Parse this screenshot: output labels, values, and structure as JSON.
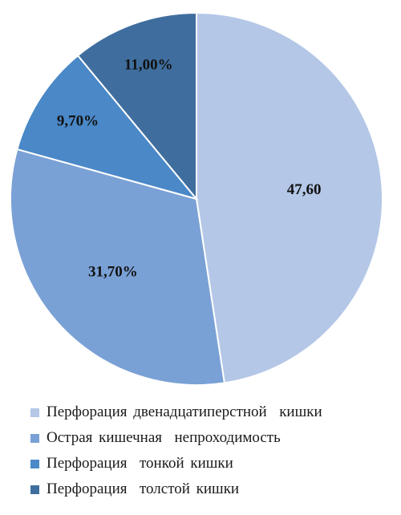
{
  "chart_data": {
    "type": "pie",
    "categories": [
      "Перфорация двенадцатиперстной кишки",
      "Острая кишечная непроходимость",
      "Перфорация тонкой кишки",
      "Перфорация толстой кишки"
    ],
    "values": [
      47.6,
      31.7,
      9.7,
      11.0
    ],
    "data_labels": [
      "47,60",
      "31,70%",
      "9,70%",
      "11,00%"
    ],
    "colors": [
      "#b4c7e7",
      "#7aa1d5",
      "#4a88c7",
      "#3f6e9e"
    ],
    "start_angle_deg": 0,
    "direction": "clockwise",
    "legend_position": "bottom",
    "title": ""
  },
  "legend": [
    {
      "label": "Перфорация двенадцатиперстной  кишки",
      "color": "#b4c7e7"
    },
    {
      "label": "Острая кишечная  непроходимость",
      "color": "#7aa1d5"
    },
    {
      "label": "Перфорация  тонкой кишки",
      "color": "#4a88c7"
    },
    {
      "label": "Перфорация  толстой кишки",
      "color": "#3f6e9e"
    }
  ]
}
